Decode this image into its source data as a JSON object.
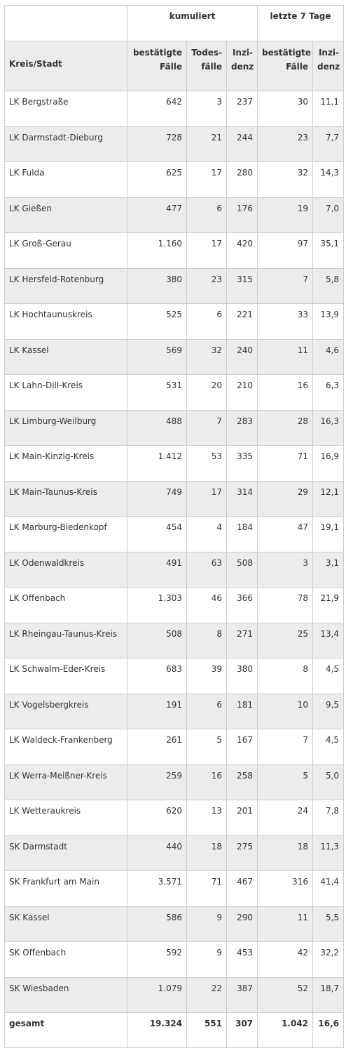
{
  "header": {
    "group_cumulative": "kumuliert",
    "group_last7": "letzte 7 Tage",
    "col_region": "Kreis/Stadt",
    "col_confirmed_cum": [
      "bestätigte",
      "Fälle"
    ],
    "col_deaths": [
      "Todes-",
      "fälle"
    ],
    "col_incidence_cum": [
      "Inzi-",
      "denz"
    ],
    "col_confirmed_7d": [
      "bestätigte",
      "Fälle"
    ],
    "col_incidence_7d": [
      "Inzi-",
      "denz"
    ]
  },
  "rows": [
    {
      "name": "LK Bergstraße",
      "confirmed": "642",
      "deaths": "3",
      "incidence": "237",
      "confirmed_7d": "30",
      "incidence_7d": "11,1"
    },
    {
      "name": "LK Darmstadt-Dieburg",
      "confirmed": "728",
      "deaths": "21",
      "incidence": "244",
      "confirmed_7d": "23",
      "incidence_7d": "7,7"
    },
    {
      "name": "LK Fulda",
      "confirmed": "625",
      "deaths": "17",
      "incidence": "280",
      "confirmed_7d": "32",
      "incidence_7d": "14,3"
    },
    {
      "name": "LK Gießen",
      "confirmed": "477",
      "deaths": "6",
      "incidence": "176",
      "confirmed_7d": "19",
      "incidence_7d": "7,0"
    },
    {
      "name": "LK Groß-Gerau",
      "confirmed": "1.160",
      "deaths": "17",
      "incidence": "420",
      "confirmed_7d": "97",
      "incidence_7d": "35,1"
    },
    {
      "name": "LK Hersfeld-Rotenburg",
      "confirmed": "380",
      "deaths": "23",
      "incidence": "315",
      "confirmed_7d": "7",
      "incidence_7d": "5,8"
    },
    {
      "name": "LK Hochtaunuskreis",
      "confirmed": "525",
      "deaths": "6",
      "incidence": "221",
      "confirmed_7d": "33",
      "incidence_7d": "13,9"
    },
    {
      "name": "LK Kassel",
      "confirmed": "569",
      "deaths": "32",
      "incidence": "240",
      "confirmed_7d": "11",
      "incidence_7d": "4,6"
    },
    {
      "name": "LK Lahn-Dill-Kreis",
      "confirmed": "531",
      "deaths": "20",
      "incidence": "210",
      "confirmed_7d": "16",
      "incidence_7d": "6,3"
    },
    {
      "name": "LK Limburg-Weilburg",
      "confirmed": "488",
      "deaths": "7",
      "incidence": "283",
      "confirmed_7d": "28",
      "incidence_7d": "16,3"
    },
    {
      "name": "LK Main-Kinzig-Kreis",
      "confirmed": "1.412",
      "deaths": "53",
      "incidence": "335",
      "confirmed_7d": "71",
      "incidence_7d": "16,9"
    },
    {
      "name": "LK Main-Taunus-Kreis",
      "confirmed": "749",
      "deaths": "17",
      "incidence": "314",
      "confirmed_7d": "29",
      "incidence_7d": "12,1"
    },
    {
      "name": "LK Marburg-Biedenkopf",
      "confirmed": "454",
      "deaths": "4",
      "incidence": "184",
      "confirmed_7d": "47",
      "incidence_7d": "19,1"
    },
    {
      "name": "LK Odenwaldkreis",
      "confirmed": "491",
      "deaths": "63",
      "incidence": "508",
      "confirmed_7d": "3",
      "incidence_7d": "3,1"
    },
    {
      "name": "LK Offenbach",
      "confirmed": "1.303",
      "deaths": "46",
      "incidence": "366",
      "confirmed_7d": "78",
      "incidence_7d": "21,9"
    },
    {
      "name": "LK Rheingau-Taunus-Kreis",
      "confirmed": "508",
      "deaths": "8",
      "incidence": "271",
      "confirmed_7d": "25",
      "incidence_7d": "13,4"
    },
    {
      "name": "LK Schwalm-Eder-Kreis",
      "confirmed": "683",
      "deaths": "39",
      "incidence": "380",
      "confirmed_7d": "8",
      "incidence_7d": "4,5"
    },
    {
      "name": "LK Vogelsbergkreis",
      "confirmed": "191",
      "deaths": "6",
      "incidence": "181",
      "confirmed_7d": "10",
      "incidence_7d": "9,5"
    },
    {
      "name": "LK Waldeck-Frankenberg",
      "confirmed": "261",
      "deaths": "5",
      "incidence": "167",
      "confirmed_7d": "7",
      "incidence_7d": "4,5"
    },
    {
      "name": "LK Werra-Meißner-Kreis",
      "confirmed": "259",
      "deaths": "16",
      "incidence": "258",
      "confirmed_7d": "5",
      "incidence_7d": "5,0"
    },
    {
      "name": "LK Wetteraukreis",
      "confirmed": "620",
      "deaths": "13",
      "incidence": "201",
      "confirmed_7d": "24",
      "incidence_7d": "7,8"
    },
    {
      "name": "SK Darmstadt",
      "confirmed": "440",
      "deaths": "18",
      "incidence": "275",
      "confirmed_7d": "18",
      "incidence_7d": "11,3"
    },
    {
      "name": "SK Frankfurt am Main",
      "confirmed": "3.571",
      "deaths": "71",
      "incidence": "467",
      "confirmed_7d": "316",
      "incidence_7d": "41,4"
    },
    {
      "name": "SK Kassel",
      "confirmed": "586",
      "deaths": "9",
      "incidence": "290",
      "confirmed_7d": "11",
      "incidence_7d": "5,5"
    },
    {
      "name": "SK Offenbach",
      "confirmed": "592",
      "deaths": "9",
      "incidence": "453",
      "confirmed_7d": "42",
      "incidence_7d": "32,2"
    },
    {
      "name": "SK Wiesbaden",
      "confirmed": "1.079",
      "deaths": "22",
      "incidence": "387",
      "confirmed_7d": "52",
      "incidence_7d": "18,7"
    }
  ],
  "total": {
    "name": "gesamt",
    "confirmed": "19.324",
    "deaths": "551",
    "incidence": "307",
    "confirmed_7d": "1.042",
    "incidence_7d": "16,6"
  }
}
